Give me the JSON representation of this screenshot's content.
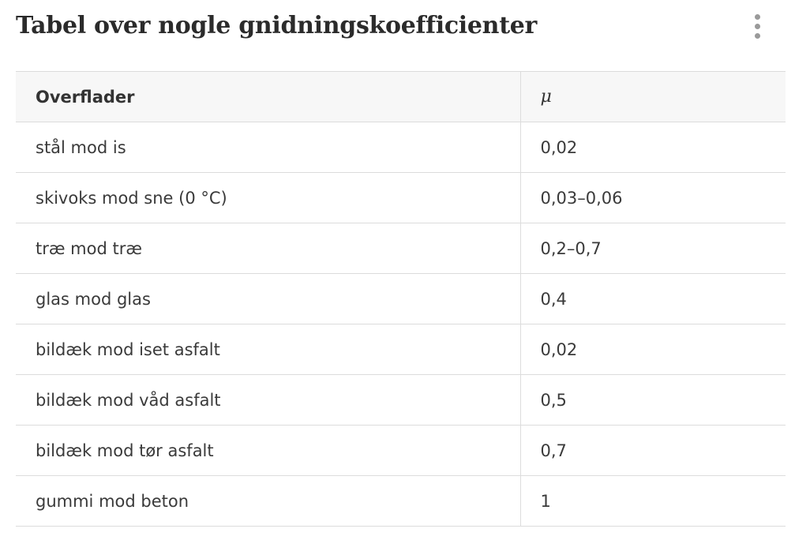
{
  "title": "Tabel over nogle gnidningskoefficienter",
  "menu": {
    "icon": "more-vertical-icon"
  },
  "table": {
    "headers": {
      "surfaces": "Overflader",
      "coefficient": "μ"
    },
    "rows": [
      {
        "surface": "stål mod is",
        "value": "0,02"
      },
      {
        "surface": "skivoks mod sne (0 °C)",
        "value": "0,03–0,06"
      },
      {
        "surface": "træ mod træ",
        "value": "0,2–0,7"
      },
      {
        "surface": "glas mod glas",
        "value": "0,4"
      },
      {
        "surface": "bildæk mod iset asfalt",
        "value": "0,02"
      },
      {
        "surface": "bildæk mod våd asfalt",
        "value": "0,5"
      },
      {
        "surface": "bildæk mod tør asfalt",
        "value": "0,7"
      },
      {
        "surface": "gummi mod beton",
        "value": "1"
      }
    ]
  }
}
